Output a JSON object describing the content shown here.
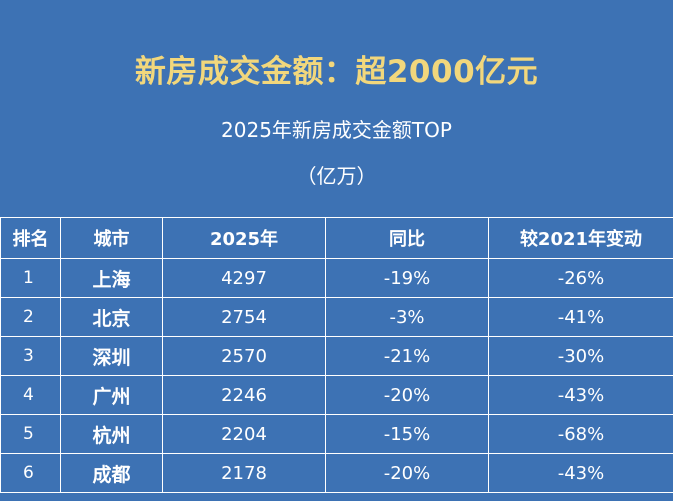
{
  "header": {
    "title": "新房成交金额：超2000亿元",
    "subtitle": "2025年新房成交金额TOP",
    "unit": "（亿万）"
  },
  "colors": {
    "background": "#3d72b4",
    "title": "#f2d77c",
    "text": "#ffffff",
    "grid": "#ffffff"
  },
  "table": {
    "columns": [
      "排名",
      "城市",
      "2025年",
      "同比",
      "较2021年变动"
    ],
    "rows": [
      {
        "rank": "1",
        "city": "上海",
        "amount": "4297",
        "yoy": "-19%",
        "vs2021": "-26%"
      },
      {
        "rank": "2",
        "city": "北京",
        "amount": "2754",
        "yoy": "-3%",
        "vs2021": "-41%"
      },
      {
        "rank": "3",
        "city": "深圳",
        "amount": "2570",
        "yoy": "-21%",
        "vs2021": "-30%"
      },
      {
        "rank": "4",
        "city": "广州",
        "amount": "2246",
        "yoy": "-20%",
        "vs2021": "-43%"
      },
      {
        "rank": "5",
        "city": "杭州",
        "amount": "2204",
        "yoy": "-15%",
        "vs2021": "-68%"
      },
      {
        "rank": "6",
        "city": "成都",
        "amount": "2178",
        "yoy": "-20%",
        "vs2021": "-43%"
      }
    ]
  }
}
